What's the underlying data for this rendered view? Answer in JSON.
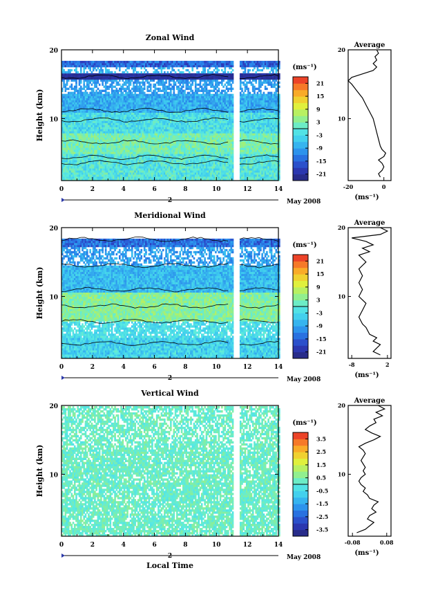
{
  "chart_data": [
    {
      "type": "heatmap",
      "title": "Zonal Wind",
      "ylabel": "Height (km)",
      "x_ticks": [
        "0",
        "2",
        "4",
        "6",
        "8",
        "10",
        "12",
        "14"
      ],
      "xlim": [
        0,
        14
      ],
      "y_ticks": [
        "20",
        "10"
      ],
      "ylim": [
        1,
        20
      ],
      "date_label": "2",
      "month_label": "May 2008",
      "gap_hours": [
        11.0,
        11.4
      ],
      "colorbar": {
        "unit": "(ms⁻¹)",
        "ticks": [
          "21",
          "15",
          "9",
          "3",
          "-3",
          "-9",
          "-15",
          "-21"
        ],
        "range": [
          -24,
          24
        ]
      },
      "profile": {
        "title": "Average",
        "xlabel": "(ms⁻¹)",
        "x_ticks": [
          "-20",
          "0"
        ],
        "x_tick_values": [
          -20,
          0
        ],
        "xlim": [
          -20,
          4
        ],
        "y_ticks": [
          "20",
          "10"
        ],
        "points": [
          [
            -2,
            1.5
          ],
          [
            -3,
            2.0
          ],
          [
            -1,
            2.5
          ],
          [
            0,
            3.0
          ],
          [
            -1,
            3.5
          ],
          [
            -3,
            4.0
          ],
          [
            0,
            4.5
          ],
          [
            1,
            5.0
          ],
          [
            -1,
            5.5
          ],
          [
            -2,
            6.0
          ],
          [
            -3,
            7.0
          ],
          [
            -4,
            8.0
          ],
          [
            -5,
            9.0
          ],
          [
            -6,
            10.0
          ],
          [
            -8,
            11.0
          ],
          [
            -10,
            12.0
          ],
          [
            -12,
            13.0
          ],
          [
            -15,
            14.0
          ],
          [
            -18,
            15.0
          ],
          [
            -20,
            15.5
          ],
          [
            -18,
            16.0
          ],
          [
            -12,
            16.5
          ],
          [
            -6,
            17.0
          ],
          [
            -4,
            17.5
          ],
          [
            -6,
            18.0
          ],
          [
            -4,
            18.5
          ],
          [
            -5,
            19.0
          ],
          [
            -3,
            19.5
          ],
          [
            -4,
            20.0
          ]
        ]
      }
    },
    {
      "type": "heatmap",
      "title": "Meridional Wind",
      "ylabel": "Height (km)",
      "x_ticks": [
        "0",
        "2",
        "4",
        "6",
        "8",
        "10",
        "12",
        "14"
      ],
      "xlim": [
        0,
        14
      ],
      "y_ticks": [
        "20",
        "10"
      ],
      "ylim": [
        1,
        20
      ],
      "date_label": "2",
      "month_label": "May 2008",
      "gap_hours": [
        11.0,
        11.4
      ],
      "colorbar": {
        "unit": "(ms⁻¹)",
        "ticks": [
          "21",
          "15",
          "9",
          "3",
          "-3",
          "-9",
          "-15",
          "-21"
        ],
        "range": [
          -24,
          24
        ]
      },
      "profile": {
        "title": "Average",
        "xlabel": "(ms⁻¹)",
        "x_ticks": [
          "-8",
          "2"
        ],
        "x_tick_values": [
          -8,
          2
        ],
        "xlim": [
          -9,
          3
        ],
        "y_ticks": [
          "20",
          "10"
        ],
        "points": [
          [
            0,
            1.5
          ],
          [
            -2,
            2.0
          ],
          [
            -1,
            2.5
          ],
          [
            0,
            3.0
          ],
          [
            -2,
            3.5
          ],
          [
            -1,
            4.0
          ],
          [
            -3,
            4.5
          ],
          [
            -4,
            5.5
          ],
          [
            -5,
            6.0
          ],
          [
            -6,
            7.0
          ],
          [
            -5,
            8.0
          ],
          [
            -4,
            9.0
          ],
          [
            -6,
            10.0
          ],
          [
            -5,
            11.0
          ],
          [
            -6,
            12.0
          ],
          [
            -5,
            13.0
          ],
          [
            -6,
            14.0
          ],
          [
            -4,
            15.0
          ],
          [
            -6,
            16.0
          ],
          [
            -3,
            16.5
          ],
          [
            -5,
            17.0
          ],
          [
            -2,
            17.5
          ],
          [
            -4,
            18.0
          ],
          [
            -8,
            18.5
          ],
          [
            0,
            19.0
          ],
          [
            2,
            19.5
          ],
          [
            0,
            20.0
          ]
        ]
      }
    },
    {
      "type": "heatmap",
      "title": "Vertical Wind",
      "ylabel": "Height (km)",
      "xlabel": "Local Time",
      "x_ticks": [
        "0",
        "2",
        "4",
        "6",
        "8",
        "10",
        "12",
        "14"
      ],
      "xlim": [
        0,
        14
      ],
      "y_ticks": [
        "20",
        "10"
      ],
      "ylim": [
        1,
        20
      ],
      "date_label": "2",
      "month_label": "May 2008",
      "gap_hours": [
        11.0,
        11.4
      ],
      "colorbar": {
        "unit": "(ms⁻¹)",
        "ticks": [
          "3.5",
          "2.5",
          "1.5",
          "0.5",
          "-0.5",
          "-1.5",
          "-2.5",
          "-3.5"
        ],
        "range": [
          -4,
          4
        ]
      },
      "profile": {
        "title": "Average",
        "xlabel": "(ms⁻¹)",
        "x_ticks": [
          "-0.08",
          "0.08"
        ],
        "x_tick_values": [
          -0.08,
          0.08
        ],
        "xlim": [
          -0.1,
          0.1
        ],
        "y_ticks": [
          "20",
          "10"
        ],
        "points": [
          [
            -0.06,
            1.5
          ],
          [
            -0.02,
            2.0
          ],
          [
            0.0,
            2.5
          ],
          [
            0.02,
            3.0
          ],
          [
            -0.01,
            3.5
          ],
          [
            0.0,
            4.0
          ],
          [
            0.03,
            4.5
          ],
          [
            0.01,
            5.0
          ],
          [
            0.02,
            5.5
          ],
          [
            0.04,
            6.0
          ],
          [
            0.0,
            6.5
          ],
          [
            -0.01,
            7.0
          ],
          [
            -0.03,
            7.5
          ],
          [
            -0.02,
            8.0
          ],
          [
            -0.04,
            8.5
          ],
          [
            -0.05,
            9.0
          ],
          [
            -0.04,
            9.5
          ],
          [
            -0.02,
            10.0
          ],
          [
            -0.03,
            10.5
          ],
          [
            -0.02,
            11.0
          ],
          [
            -0.04,
            12.0
          ],
          [
            -0.02,
            13.0
          ],
          [
            -0.03,
            13.5
          ],
          [
            -0.05,
            14.0
          ],
          [
            -0.02,
            14.5
          ],
          [
            0.02,
            15.0
          ],
          [
            0.05,
            15.5
          ],
          [
            0.01,
            16.0
          ],
          [
            -0.02,
            16.5
          ],
          [
            0.0,
            17.0
          ],
          [
            0.03,
            17.5
          ],
          [
            0.02,
            18.0
          ],
          [
            0.06,
            18.5
          ],
          [
            0.03,
            19.0
          ],
          [
            0.07,
            19.5
          ],
          [
            0.04,
            20.0
          ]
        ]
      }
    }
  ]
}
